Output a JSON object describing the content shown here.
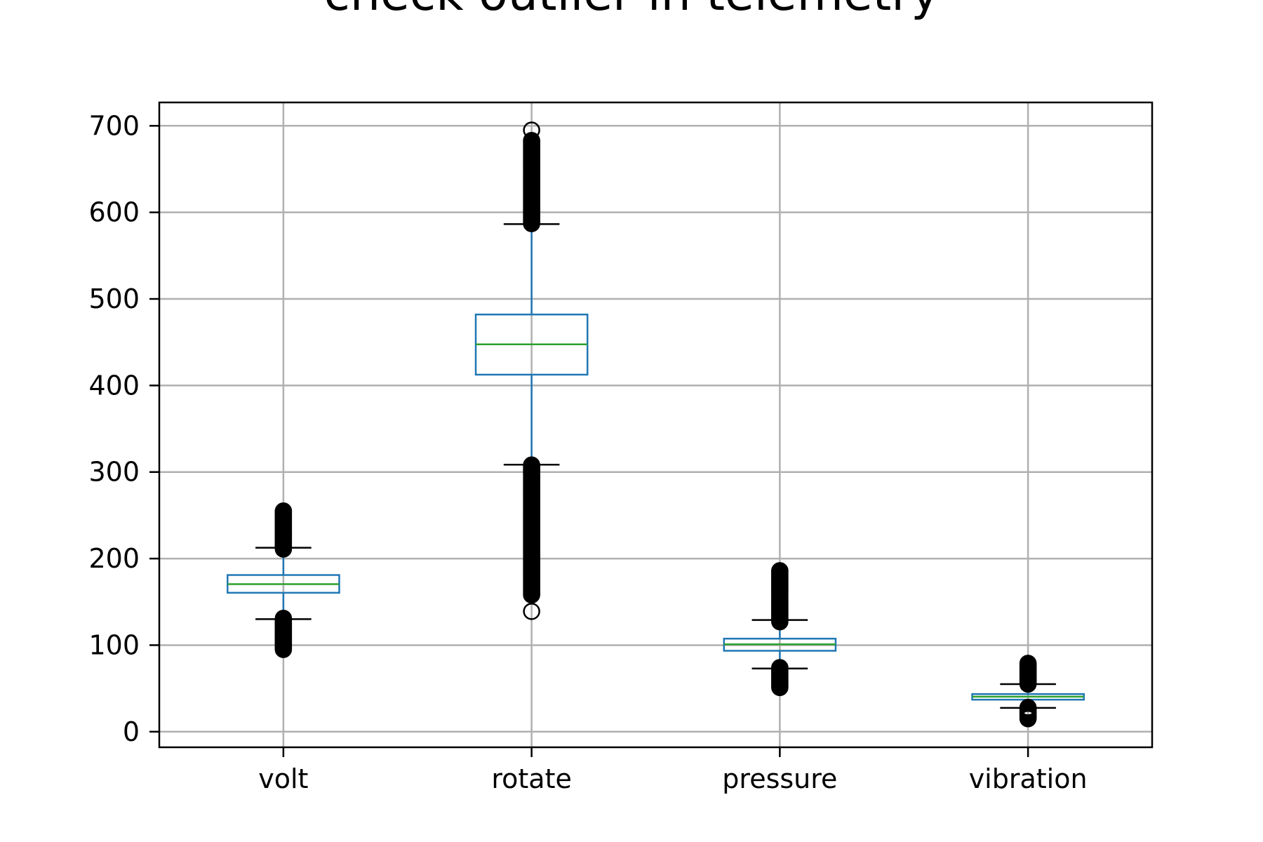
{
  "chart_data": {
    "type": "box",
    "title": "check outlier in telemetry",
    "xlabel": "",
    "ylabel": "",
    "ylim": [
      -18,
      727
    ],
    "yticks": [
      0,
      100,
      200,
      300,
      400,
      500,
      600,
      700
    ],
    "grid": true,
    "colors": {
      "box": "#1f77b4",
      "median": "#2ca02c",
      "whisker_cap": "#000000",
      "outlier": "#000000",
      "grid": "#b0b0b0"
    },
    "categories": [
      "volt",
      "rotate",
      "pressure",
      "vibration"
    ],
    "boxes": [
      {
        "name": "volt",
        "q1": 160.5,
        "median": 170.5,
        "q3": 181.0,
        "whisker_low": 130.0,
        "whisker_high": 212.5,
        "outliers_low_range": [
          95,
          131
        ],
        "outliers_high_range": [
          211,
          255
        ]
      },
      {
        "name": "rotate",
        "q1": 412.5,
        "median": 447.5,
        "q3": 482.0,
        "whisker_low": 308.5,
        "whisker_high": 586.5,
        "outliers_low_range": [
          158,
          308
        ],
        "outliers_high_range": [
          587,
          683
        ],
        "outliers_extra": [
          139,
          695
        ]
      },
      {
        "name": "pressure",
        "q1": 93.5,
        "median": 101.0,
        "q3": 107.5,
        "whisker_low": 73.0,
        "whisker_high": 129.0,
        "outliers_low_range": [
          51,
          74
        ],
        "outliers_high_range": [
          127,
          186
        ]
      },
      {
        "name": "vibration",
        "q1": 37.0,
        "median": 40.5,
        "q3": 43.5,
        "whisker_low": 27.5,
        "whisker_high": 55.0,
        "outliers_low_range": [
          15,
          28
        ],
        "outliers_high_range": [
          55,
          79
        ]
      }
    ]
  }
}
